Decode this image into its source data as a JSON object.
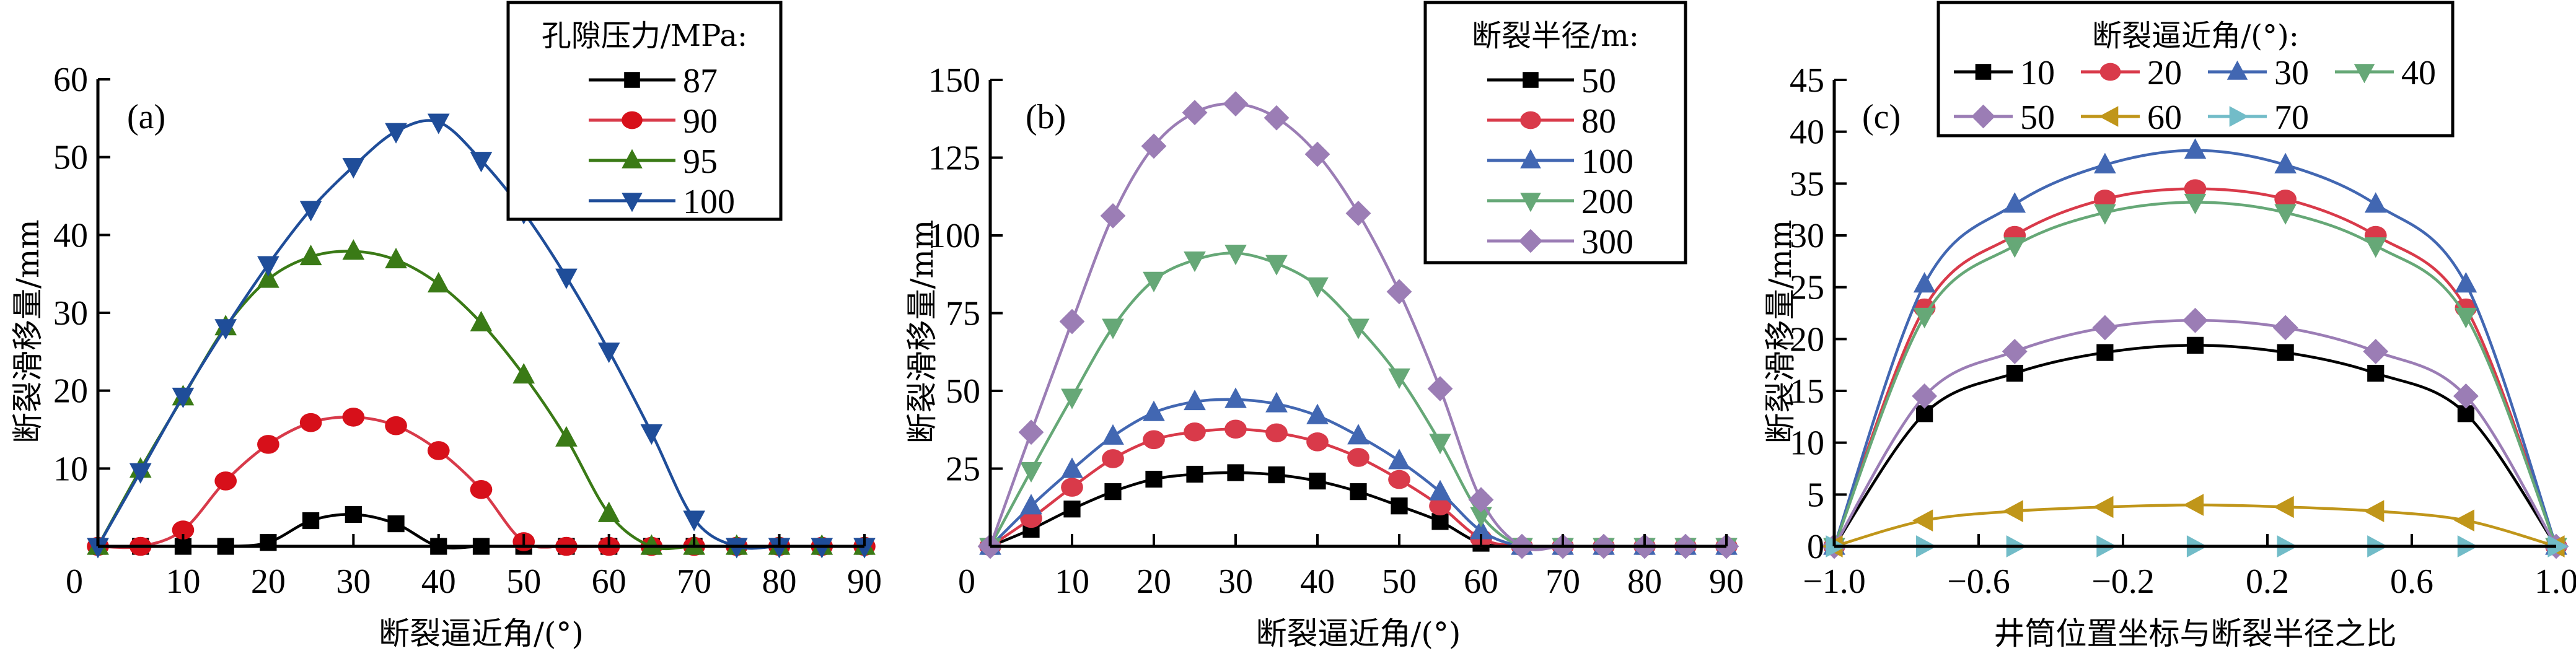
{
  "chart_data": [
    {
      "type": "line",
      "panel_label": "(a)",
      "xlabel": "断裂逼近角/(°)",
      "ylabel": "断裂滑移量/mm",
      "xlim": [
        0,
        90
      ],
      "ylim": [
        0,
        60
      ],
      "xticks": [
        0,
        10,
        20,
        30,
        40,
        50,
        60,
        70,
        80,
        90
      ],
      "yticks": [
        10,
        20,
        30,
        40,
        50,
        60
      ],
      "legend_title": "孔隙压力/MPa:",
      "legend_position": "top-right",
      "x": [
        0,
        5,
        10,
        15,
        20,
        25,
        30,
        35,
        40,
        45,
        50,
        55,
        60,
        65,
        70,
        75,
        80,
        85,
        90
      ],
      "series": [
        {
          "name": "87",
          "color": "#000000",
          "marker": "square",
          "values": [
            0,
            0,
            0,
            0,
            0.5,
            3.3,
            4.1,
            2.9,
            0,
            0,
            0,
            0,
            0,
            0,
            0,
            0,
            0,
            0,
            0
          ]
        },
        {
          "name": "90",
          "color": "#d7101a",
          "line_color": "#d83a4a",
          "marker": "circle",
          "values": [
            0,
            0,
            2.1,
            8.4,
            13.1,
            15.9,
            16.6,
            15.5,
            12.3,
            7.3,
            0.6,
            0,
            0,
            0,
            0,
            0,
            0,
            0,
            0
          ]
        },
        {
          "name": "95",
          "color": "#3a7a16",
          "marker": "triangle-up",
          "values": [
            0,
            9.9,
            19.2,
            28.2,
            34.3,
            37.2,
            37.9,
            36.8,
            33.7,
            28.7,
            22.0,
            13.9,
            4.2,
            0,
            0,
            0,
            0,
            0,
            0
          ]
        },
        {
          "name": "100",
          "color": "#1f4d99",
          "marker": "triangle-down",
          "values": [
            0,
            9.6,
            19.3,
            28.1,
            36.2,
            43.3,
            48.8,
            53.3,
            54.5,
            49.6,
            42.9,
            34.6,
            25.1,
            14.6,
            3.5,
            0,
            0,
            0,
            0
          ]
        }
      ]
    },
    {
      "type": "line",
      "panel_label": "(b)",
      "xlabel": "断裂逼近角/(°)",
      "ylabel": "断裂滑移量/mm",
      "xlim": [
        0,
        90
      ],
      "ylim": [
        0,
        150
      ],
      "xticks": [
        0,
        10,
        20,
        30,
        40,
        50,
        60,
        70,
        80,
        90
      ],
      "yticks": [
        25,
        50,
        75,
        100,
        125,
        150
      ],
      "legend_title": "断裂半径/m:",
      "legend_position": "top-right",
      "x": [
        0,
        5,
        10,
        15,
        20,
        25,
        30,
        35,
        40,
        45,
        50,
        55,
        60,
        65,
        70,
        75,
        80,
        85,
        90
      ],
      "series": [
        {
          "name": "50",
          "color": "#000000",
          "marker": "square",
          "values": [
            0,
            5.5,
            12.0,
            17.6,
            21.6,
            23.2,
            23.7,
            23.0,
            21.0,
            17.6,
            13.0,
            8.0,
            1.0,
            0,
            0,
            0,
            0,
            0,
            0
          ]
        },
        {
          "name": "80",
          "color": "#d93a4a",
          "marker": "circle",
          "values": [
            0,
            9.0,
            19.0,
            28.2,
            34.3,
            36.8,
            37.7,
            36.5,
            33.6,
            28.6,
            21.5,
            13.0,
            2.5,
            0,
            0,
            0,
            0,
            0,
            0
          ]
        },
        {
          "name": "100",
          "color": "#4267b2",
          "marker": "triangle-up",
          "values": [
            0,
            13.0,
            24.7,
            35.4,
            43.0,
            46.5,
            47.2,
            45.8,
            42.0,
            35.5,
            27.5,
            17.5,
            5.0,
            0,
            0,
            0,
            0,
            0,
            0
          ]
        },
        {
          "name": "200",
          "color": "#66a877",
          "marker": "triangle-down",
          "values": [
            0,
            24.4,
            48.0,
            70.5,
            85.6,
            92.1,
            94.3,
            91.0,
            83.8,
            70.5,
            54.5,
            33.5,
            10.0,
            0,
            0,
            0,
            0,
            0,
            0
          ]
        },
        {
          "name": "300",
          "color": "#9b7db5",
          "marker": "diamond",
          "values": [
            0,
            36.7,
            72.3,
            106.3,
            128.7,
            139.5,
            142.3,
            137.8,
            126.1,
            107.1,
            81.9,
            50.7,
            15.0,
            0,
            0,
            0,
            0,
            0,
            0
          ]
        }
      ]
    },
    {
      "type": "line",
      "panel_label": "(c)",
      "xlabel": "井筒位置坐标与断裂半径之比",
      "ylabel": "断裂滑移量/mm",
      "xlim": [
        -1.0,
        1.0
      ],
      "ylim": [
        0,
        45
      ],
      "xticks": [
        "−1.0",
        "−0.6",
        "−0.2",
        "0.2",
        "0.6",
        "1.0"
      ],
      "xtick_values": [
        -1.0,
        -0.6,
        -0.2,
        0.2,
        0.6,
        1.0
      ],
      "yticks": [
        0,
        5,
        10,
        15,
        20,
        25,
        30,
        35,
        40,
        45
      ],
      "legend_title": "断裂逼近角/(°):",
      "legend_position": "top-right",
      "x": [
        -1.0,
        -0.75,
        -0.5,
        -0.25,
        0,
        0.25,
        0.5,
        0.75,
        1.0
      ],
      "series": [
        {
          "name": "10",
          "color": "#000000",
          "marker": "square",
          "values": [
            0,
            12.8,
            16.7,
            18.7,
            19.4,
            18.7,
            16.7,
            12.8,
            0
          ]
        },
        {
          "name": "20",
          "color": "#d93a4a",
          "marker": "circle",
          "values": [
            0,
            23.0,
            30.0,
            33.5,
            34.5,
            33.5,
            30.0,
            23.0,
            0
          ]
        },
        {
          "name": "30",
          "color": "#4267b2",
          "marker": "triangle-up",
          "values": [
            0,
            25.3,
            33.0,
            36.8,
            38.2,
            36.8,
            33.0,
            25.3,
            0
          ]
        },
        {
          "name": "40",
          "color": "#66a877",
          "marker": "triangle-down",
          "values": [
            0,
            22.2,
            29.0,
            32.2,
            33.2,
            32.2,
            29.0,
            22.2,
            0
          ]
        },
        {
          "name": "50",
          "color": "#9b7db5",
          "marker": "diamond",
          "values": [
            0,
            14.5,
            18.8,
            21.1,
            21.8,
            21.1,
            18.8,
            14.5,
            0
          ]
        },
        {
          "name": "60",
          "color": "#c0961a",
          "marker": "triangle-left",
          "values": [
            0,
            2.5,
            3.4,
            3.8,
            4.0,
            3.8,
            3.4,
            2.5,
            0
          ]
        },
        {
          "name": "70",
          "color": "#72bcc8",
          "marker": "triangle-right",
          "values": [
            0,
            0,
            0,
            0,
            0,
            0,
            0,
            0,
            0
          ]
        }
      ]
    }
  ]
}
